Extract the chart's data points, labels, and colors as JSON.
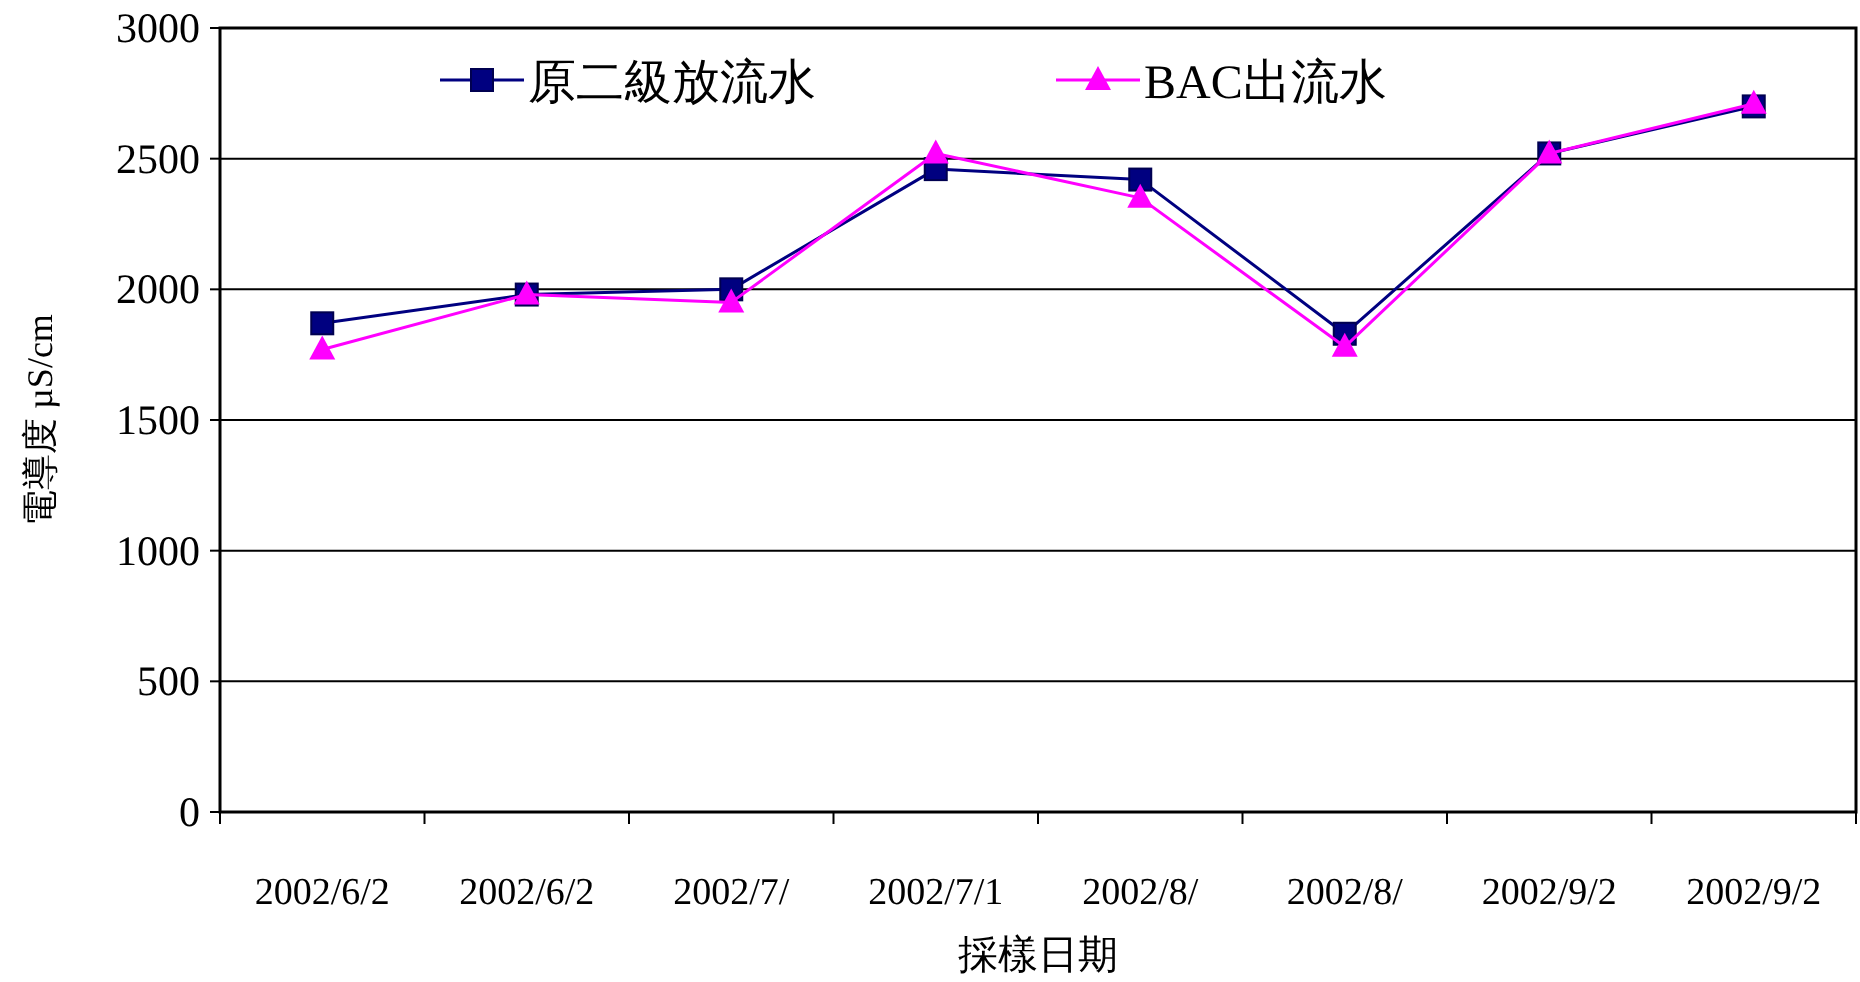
{
  "chart_data": {
    "type": "line",
    "xlabel": "採樣日期",
    "ylabel": "電導度 µS/cm",
    "categories": [
      "2002/6/2",
      "2002/6/2",
      "2002/7/",
      "2002/7/1",
      "2002/8/",
      "2002/8/",
      "2002/9/2",
      "2002/9/2"
    ],
    "series": [
      {
        "name": "原二級放流水",
        "color": "#000080",
        "marker": "square",
        "values": [
          1870,
          1980,
          2000,
          2460,
          2420,
          1830,
          2520,
          2700
        ]
      },
      {
        "name": "BAC出流水",
        "color": "#ff00ff",
        "marker": "triangle",
        "values": [
          1770,
          1980,
          1950,
          2520,
          2350,
          1780,
          2520,
          2710
        ]
      }
    ],
    "ylim": [
      0,
      3000
    ],
    "yticks": [
      0,
      500,
      1000,
      1500,
      2000,
      2500,
      3000
    ],
    "grid": "y",
    "legend": "top",
    "line_style": "solid"
  }
}
